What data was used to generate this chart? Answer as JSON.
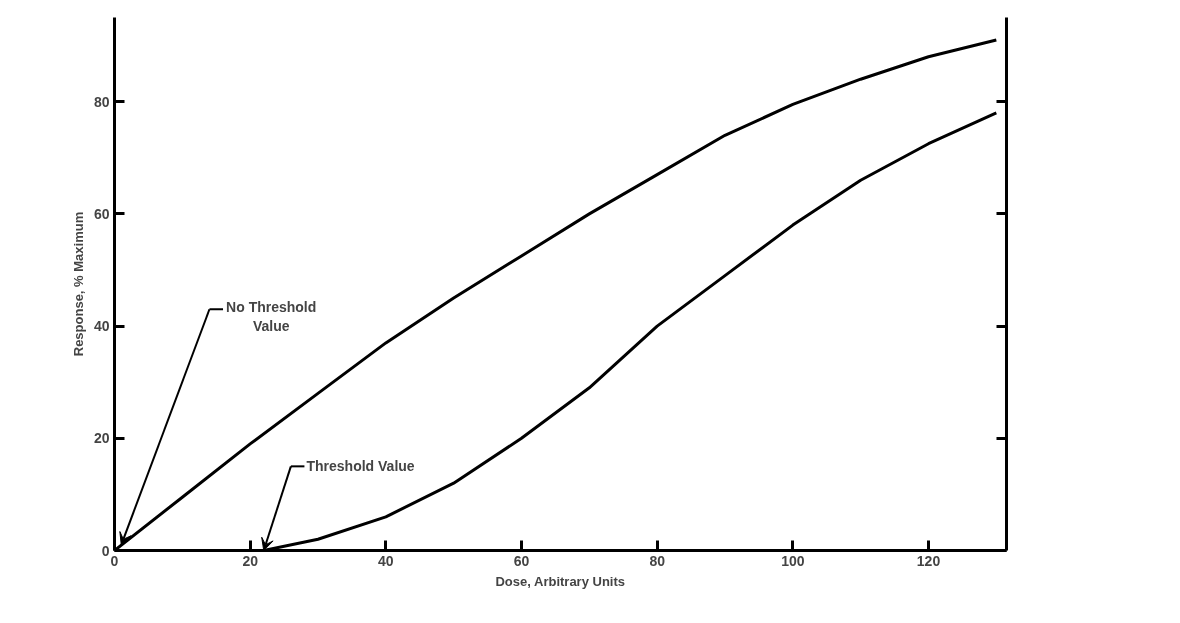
{
  "chart_data": {
    "type": "line",
    "xlabel": "Dose, Arbitrary Units",
    "ylabel": "Response, % Maximum",
    "xlim": [
      0,
      131.5
    ],
    "ylim": [
      0,
      95
    ],
    "xticks": [
      0,
      20,
      40,
      60,
      80,
      100,
      120
    ],
    "yticks": [
      0,
      20,
      40,
      60,
      80
    ],
    "grid": false,
    "marker": "none",
    "line_style": "solid",
    "series": [
      {
        "color": "#000000",
        "x": [
          0,
          10,
          20,
          30,
          40,
          50,
          60,
          70,
          80,
          90,
          100,
          110,
          120,
          130
        ],
        "values": [
          0,
          9.5,
          19,
          28,
          37,
          45,
          52.5,
          60,
          67,
          74,
          79.5,
          84,
          88,
          91
        ]
      },
      {
        "color": "#000000",
        "x": [
          22,
          30,
          40,
          50,
          60,
          70,
          80,
          90,
          100,
          110,
          120,
          130
        ],
        "values": [
          0,
          2,
          6,
          12,
          20,
          29,
          40,
          49,
          58,
          66,
          72.5,
          78
        ]
      }
    ],
    "annotations": [
      {
        "text": "No Threshold Value",
        "x": 1,
        "y": 1
      },
      {
        "text": "Threshold Value",
        "x": 22,
        "y": 0
      }
    ]
  }
}
